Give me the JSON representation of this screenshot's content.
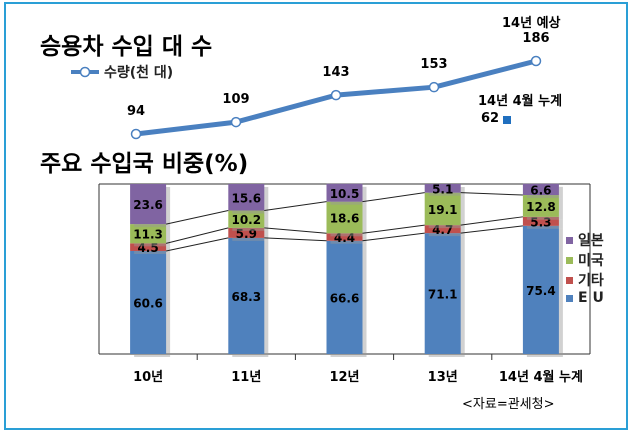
{
  "colors": {
    "frame": "#2a9fd6",
    "line": "#4a80c0",
    "eu": "#4f81bd",
    "etc": "#c0504d",
    "usa": "#9bbb59",
    "japan": "#8064a2"
  },
  "chart_data": [
    {
      "type": "line",
      "title": "승용차 수입 대 수",
      "legend": "수량(천 대)",
      "series": [
        {
          "name": "수량(천 대)",
          "x": [
            "10년",
            "11년",
            "12년",
            "13년",
            "14년 예상"
          ],
          "values": [
            94,
            109,
            143,
            153,
            186
          ]
        }
      ],
      "annotations": [
        {
          "label": "14년 예상",
          "value": 186
        },
        {
          "label": "14년 4월 누계",
          "value": 62
        }
      ]
    },
    {
      "type": "bar",
      "stacked": true,
      "title": "주요 수입국 비중(%)",
      "categories": [
        "10년",
        "11년",
        "12년",
        "13년",
        "14년 4월 누계"
      ],
      "series": [
        {
          "name": "E U",
          "values": [
            60.6,
            68.3,
            66.6,
            71.1,
            75.4
          ]
        },
        {
          "name": "기타",
          "values": [
            4.5,
            5.9,
            4.4,
            4.7,
            5.3
          ]
        },
        {
          "name": "미국",
          "values": [
            11.3,
            10.2,
            18.6,
            19.1,
            12.8
          ]
        },
        {
          "name": "일본",
          "values": [
            23.6,
            15.6,
            10.5,
            5.1,
            6.6
          ]
        }
      ],
      "ylim": [
        0,
        100
      ],
      "legend_position": "right"
    }
  ],
  "source": "<자료=관세청>"
}
